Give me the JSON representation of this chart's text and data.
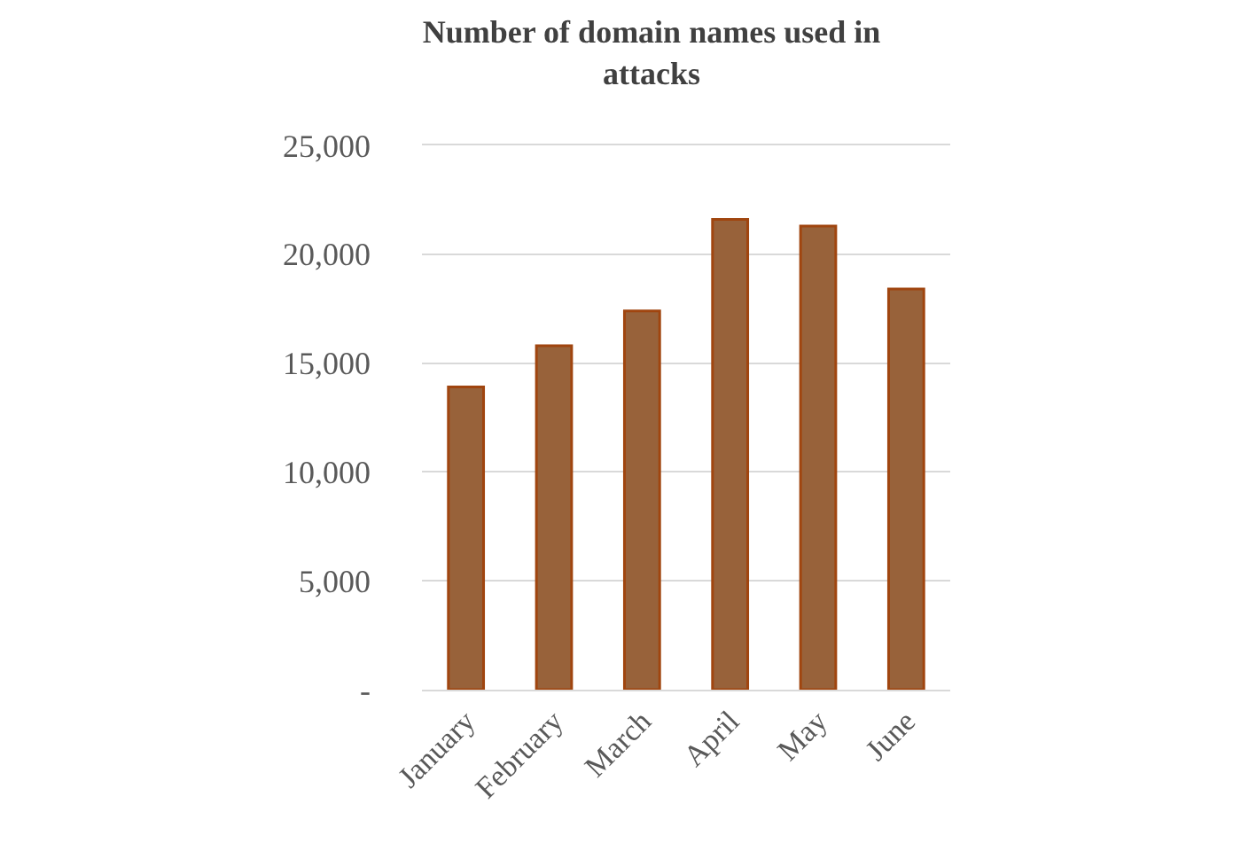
{
  "chart_data": {
    "type": "bar",
    "title": "Number of domain names used in attacks",
    "categories": [
      "January",
      "February",
      "March",
      "April",
      "May",
      "June"
    ],
    "values": [
      13900,
      15800,
      17400,
      21600,
      21300,
      18400
    ],
    "color": "#98623a",
    "ylim": [
      0,
      25000
    ],
    "yticks": [
      {
        "value": 0,
        "label": "-"
      },
      {
        "value": 5000,
        "label": "5,000"
      },
      {
        "value": 10000,
        "label": "10,000"
      },
      {
        "value": 15000,
        "label": "15,000"
      },
      {
        "value": 20000,
        "label": "20,000"
      },
      {
        "value": 25000,
        "label": "25,000"
      }
    ],
    "grid": "y",
    "legend": false
  }
}
